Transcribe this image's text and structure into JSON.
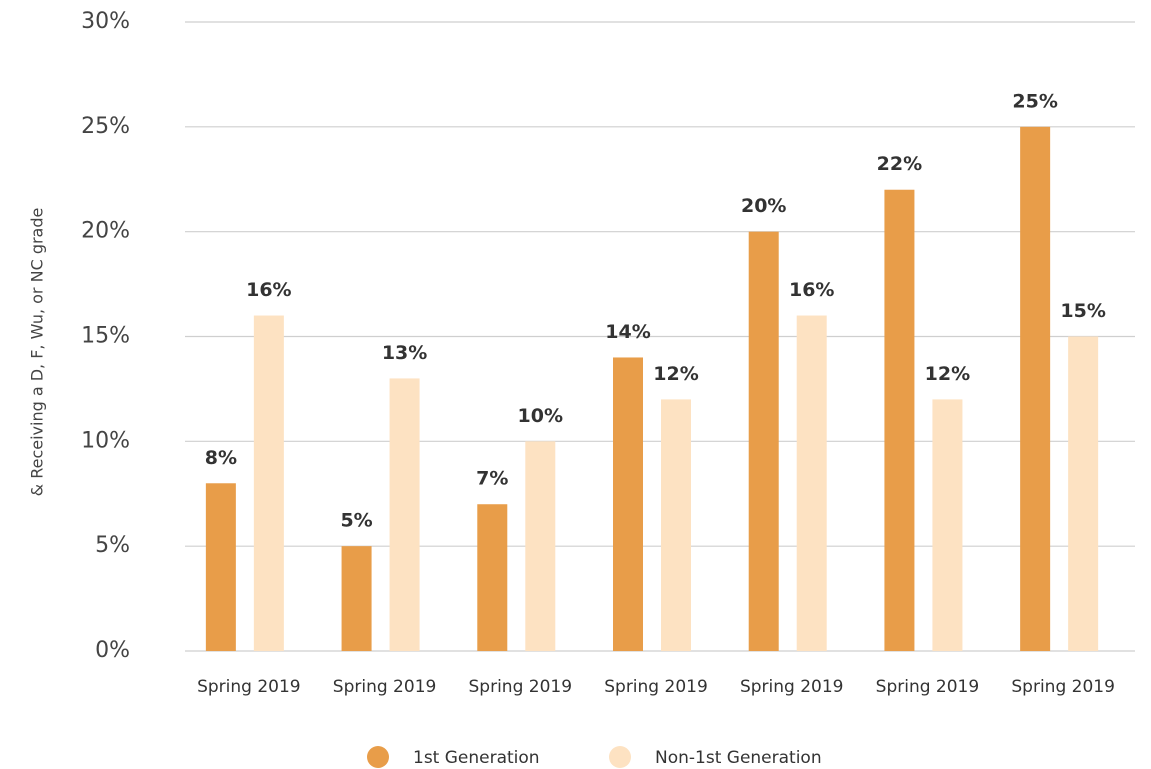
{
  "chart_data": {
    "type": "bar",
    "y_label": "& Receiving a D, F, Wu, or NC grade",
    "categories": [
      "Spring 2019",
      "Spring 2019",
      "Spring 2019",
      "Spring 2019",
      "Spring 2019",
      "Spring 2019",
      "Spring 2019"
    ],
    "series": [
      {
        "name": "1st Generation",
        "color": "#e89d49",
        "values": [
          8,
          5,
          7,
          14,
          20,
          22,
          25
        ],
        "value_labels": [
          "8%",
          "5%",
          "7%",
          "14%",
          "20%",
          "22%",
          "25%"
        ]
      },
      {
        "name": "Non-1st Generation",
        "color": "#fde2c2",
        "values": [
          16,
          13,
          10,
          12,
          16,
          12,
          15
        ],
        "value_labels": [
          "16%",
          "13%",
          "10%",
          "12%",
          "16%",
          "12%",
          "15%"
        ]
      }
    ],
    "ylim": [
      0,
      30
    ],
    "yticks": [
      {
        "value": 0,
        "label": "0%"
      },
      {
        "value": 5,
        "label": "5%"
      },
      {
        "value": 10,
        "label": "10%"
      },
      {
        "value": 15,
        "label": "15%"
      },
      {
        "value": 20,
        "label": "20%"
      },
      {
        "value": 25,
        "label": "25%"
      },
      {
        "value": 30,
        "label": "30%"
      }
    ],
    "grid": true,
    "legend": "bottom"
  }
}
